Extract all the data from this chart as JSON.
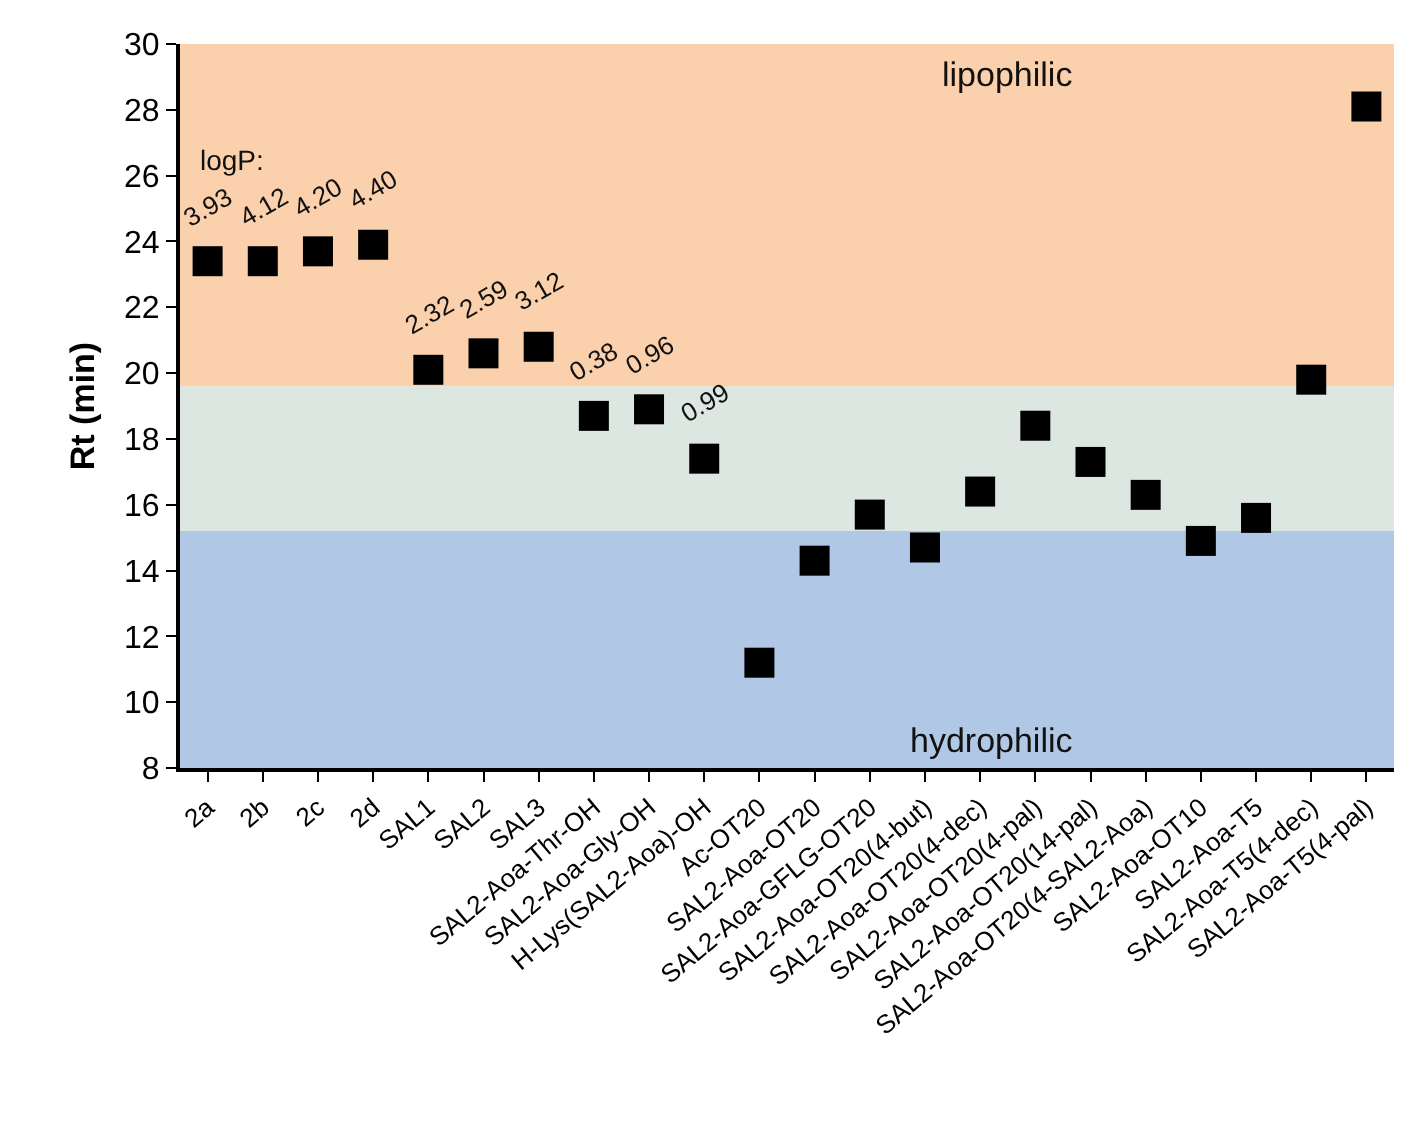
{
  "chart_data": {
    "type": "scatter",
    "ylabel": "Rt (min)",
    "categories": [
      "2a",
      "2b",
      "2c",
      "2d",
      "SAL1",
      "SAL2",
      "SAL3",
      "SAL2-Aoa-Thr-OH",
      "SAL2-Aoa-Gly-OH",
      "H-Lys(SAL2-Aoa)-OH",
      "Ac-OT20",
      "SAL2-Aoa-OT20",
      "SAL2-Aoa-GFLG-OT20",
      "SAL2-Aoa-OT20(4-but)",
      "SAL2-Aoa-OT20(4-dec)",
      "SAL2-Aoa-OT20(4-pal)",
      "SAL2-Aoa-OT20(14-pal)",
      "SAL2-Aoa-OT20(4-SAL2-Aoa)",
      "SAL2-Aoa-OT10",
      "SAL2-Aoa-T5",
      "SAL2-Aoa-T5(4-dec)",
      "SAL2-Aoa-T5(4-pal)"
    ],
    "series": [
      {
        "color": "#000000",
        "values": [
          23.4,
          23.4,
          23.7,
          23.9,
          20.1,
          20.6,
          20.8,
          18.7,
          18.9,
          17.4,
          11.2,
          14.3,
          15.7,
          14.7,
          16.4,
          18.4,
          17.3,
          16.3,
          14.9,
          15.6,
          19.8,
          28.1
        ]
      }
    ],
    "marker": "square",
    "ylim": [
      8,
      30
    ],
    "yticks": [
      8,
      10,
      12,
      14,
      16,
      18,
      20,
      22,
      24,
      26,
      28,
      30
    ],
    "grid": false,
    "bands": [
      {
        "axis": "y",
        "from": 8,
        "to": 15.2,
        "label": "hydrophilic",
        "color": "#b0c8e6"
      },
      {
        "axis": "y",
        "from": 15.2,
        "to": 19.6,
        "label": null,
        "color": "#dce7e2"
      },
      {
        "axis": "y",
        "from": 19.6,
        "to": 30,
        "label": "lipophilic",
        "color": "#fbd0ac"
      }
    ],
    "annotations": [
      "logP:",
      {
        "text": "3.93",
        "x": "2a",
        "y": 23.4
      },
      {
        "text": "4.12",
        "x": "2b",
        "y": 23.4
      },
      {
        "text": "4.20",
        "x": "2c",
        "y": 23.7
      },
      {
        "text": "4.40",
        "x": "2d",
        "y": 23.9
      },
      {
        "text": "2.32",
        "x": "SAL1",
        "y": 20.1
      },
      {
        "text": "2.59",
        "x": "SAL2",
        "y": 20.6
      },
      {
        "text": "3.12",
        "x": "SAL3",
        "y": 20.8
      },
      {
        "text": "0.38",
        "x": "SAL2-Aoa-Thr-OH",
        "y": 18.7
      },
      {
        "text": "0.96",
        "x": "SAL2-Aoa-Gly-OH",
        "y": 18.9
      },
      {
        "text": "0.99",
        "x": "H-Lys(SAL2-Aoa)-OH",
        "y": 17.4
      }
    ]
  }
}
